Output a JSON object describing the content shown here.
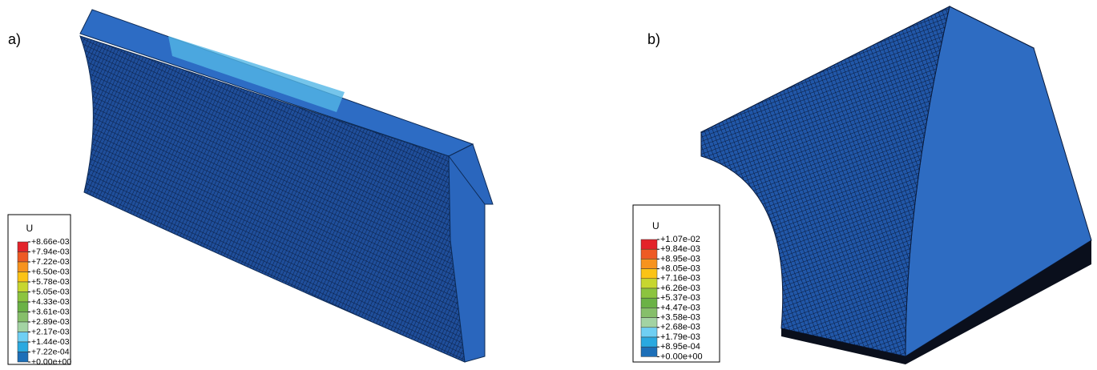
{
  "panels": [
    {
      "label": "a)",
      "legend": {
        "title": "U",
        "labels": [
          "+8.66e-03",
          "+7.94e-03",
          "+7.22e-03",
          "+6.50e-03",
          "+5.78e-03",
          "+5.05e-03",
          "+4.33e-03",
          "+3.61e-03",
          "+2.89e-03",
          "+2.17e-03",
          "+1.44e-03",
          "+7.22e-04",
          "+0.00e+00"
        ]
      }
    },
    {
      "label": "b)",
      "legend": {
        "title": "U",
        "labels": [
          "+1.07e-02",
          "+9.84e-03",
          "+8.95e-03",
          "+8.05e-03",
          "+7.16e-03",
          "+6.26e-03",
          "+5.37e-03",
          "+4.47e-03",
          "+3.58e-03",
          "+2.68e-03",
          "+1.79e-03",
          "+8.95e-04",
          "+0.00e+00"
        ]
      }
    }
  ],
  "legend_colors": [
    "#e3232a",
    "#ee5a24",
    "#f7931e",
    "#fbc316",
    "#c7d62f",
    "#8cc43f",
    "#6bb246",
    "#86bf6a",
    "#a3d3a3",
    "#6fcff3",
    "#2aa9e0",
    "#1d6fb8"
  ]
}
